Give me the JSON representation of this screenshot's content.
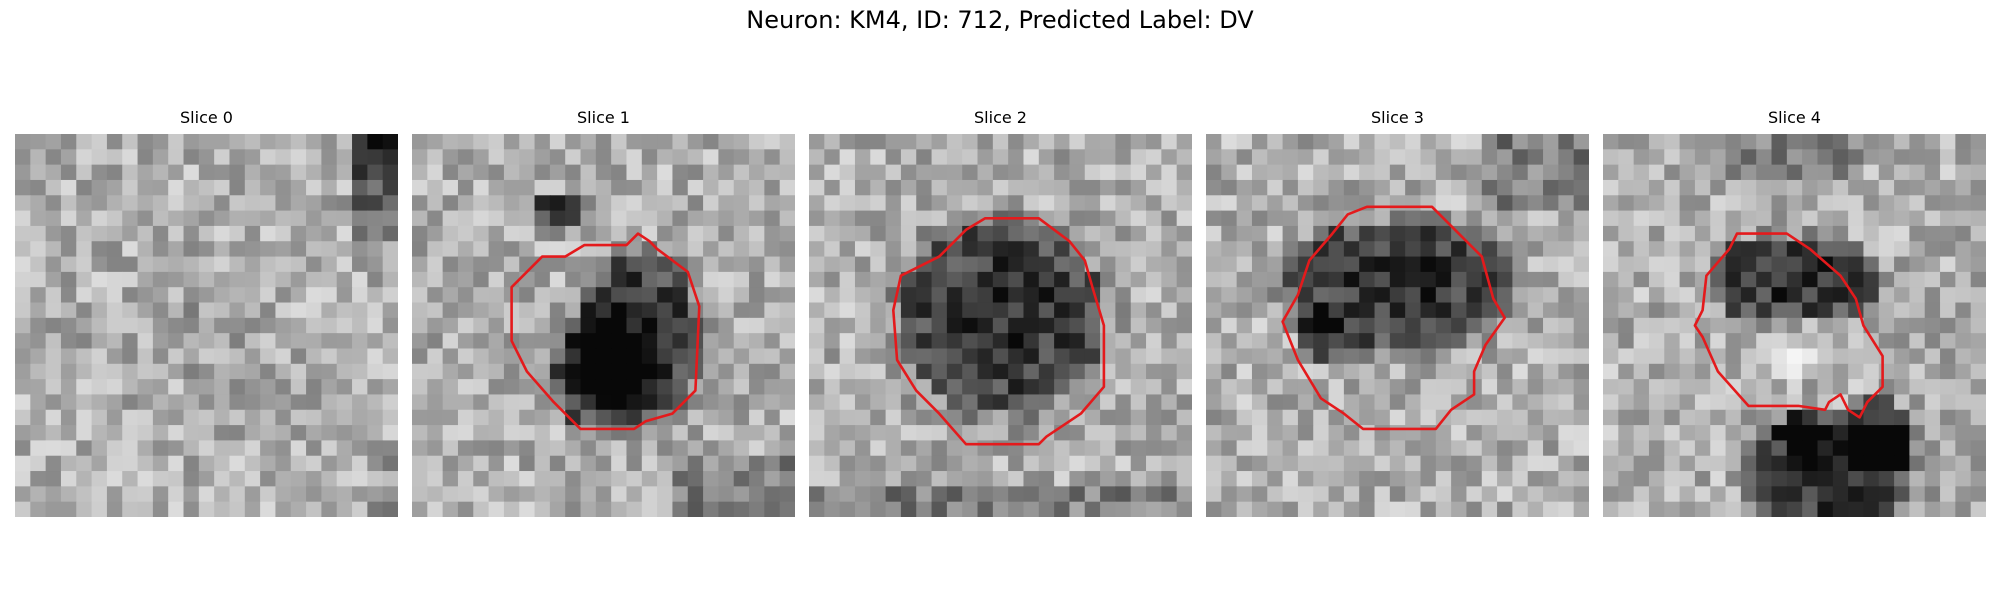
{
  "figure": {
    "suptitle": "Neuron: KM4, ID: 712, Predicted Label: DV"
  },
  "colors": {
    "contour": "#e41a1c",
    "background": "#ffffff"
  },
  "panels": [
    {
      "title": "Slice 0",
      "has_contour": false,
      "blob": null,
      "seed": 11
    },
    {
      "title": "Slice 1",
      "has_contour": true,
      "blob": "bean",
      "seed": 23
    },
    {
      "title": "Slice 2",
      "has_contour": true,
      "blob": "round",
      "seed": 37
    },
    {
      "title": "Slice 3",
      "has_contour": true,
      "blob": "upper",
      "seed": 41
    },
    {
      "title": "Slice 4",
      "has_contour": true,
      "blob": "ring",
      "seed": 53
    }
  ]
}
